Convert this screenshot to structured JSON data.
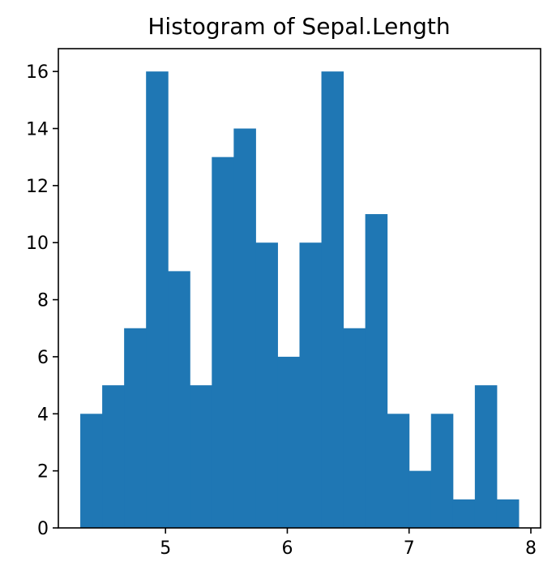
{
  "chart_data": {
    "type": "bar",
    "title": "Histogram of Sepal.Length",
    "xlabel": "",
    "ylabel": "",
    "bins": [
      {
        "x0": 4.3,
        "x1": 4.48,
        "count": 4
      },
      {
        "x0": 4.48,
        "x1": 4.66,
        "count": 5
      },
      {
        "x0": 4.66,
        "x1": 4.84,
        "count": 7
      },
      {
        "x0": 4.84,
        "x1": 5.02,
        "count": 16
      },
      {
        "x0": 5.02,
        "x1": 5.2,
        "count": 9
      },
      {
        "x0": 5.2,
        "x1": 5.38,
        "count": 5
      },
      {
        "x0": 5.38,
        "x1": 5.56,
        "count": 13
      },
      {
        "x0": 5.56,
        "x1": 5.74,
        "count": 14
      },
      {
        "x0": 5.74,
        "x1": 5.92,
        "count": 10
      },
      {
        "x0": 5.92,
        "x1": 6.1,
        "count": 6
      },
      {
        "x0": 6.1,
        "x1": 6.28,
        "count": 10
      },
      {
        "x0": 6.28,
        "x1": 6.46,
        "count": 16
      },
      {
        "x0": 6.46,
        "x1": 6.64,
        "count": 7
      },
      {
        "x0": 6.64,
        "x1": 6.82,
        "count": 11
      },
      {
        "x0": 6.82,
        "x1": 7.0,
        "count": 4
      },
      {
        "x0": 7.0,
        "x1": 7.18,
        "count": 2
      },
      {
        "x0": 7.18,
        "x1": 7.36,
        "count": 4
      },
      {
        "x0": 7.36,
        "x1": 7.54,
        "count": 1
      },
      {
        "x0": 7.54,
        "x1": 7.72,
        "count": 5
      },
      {
        "x0": 7.72,
        "x1": 7.9,
        "count": 1
      }
    ],
    "xlim": [
      4.12,
      8.08
    ],
    "ylim": [
      0,
      16.8
    ],
    "xticks": [
      5,
      6,
      7,
      8
    ],
    "yticks": [
      0,
      2,
      4,
      6,
      8,
      10,
      12,
      14,
      16
    ],
    "bar_color": "#1f77b4",
    "grid": false,
    "legend": "none"
  }
}
